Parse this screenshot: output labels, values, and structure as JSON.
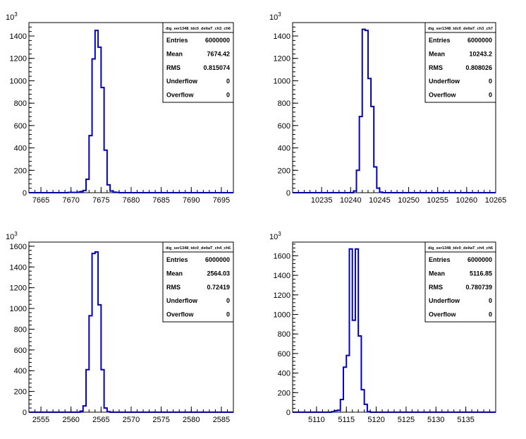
{
  "chart_data": [
    {
      "type": "histogram",
      "stats_title": "dig_ser1348_tdc0_deltaT_ch3_ch6",
      "y_multiplier_base": "10",
      "y_multiplier_exp": "3",
      "xlim": [
        7663,
        7697
      ],
      "ylim": [
        0,
        1520
      ],
      "xticks": [
        7665,
        7670,
        7675,
        7680,
        7685,
        7690,
        7695
      ],
      "xtick_labels": [
        "7665",
        "7670",
        "7675",
        "7680",
        "7685",
        "7690",
        "7695"
      ],
      "yticks": [
        0,
        200,
        400,
        600,
        800,
        1000,
        1200,
        1400
      ],
      "ytick_labels": [
        "0",
        "200",
        "400",
        "600",
        "800",
        "1000",
        "1200",
        "1400"
      ],
      "bin_width": 0.5,
      "bins": [
        [
          7669.5,
          2
        ],
        [
          7670.0,
          2
        ],
        [
          7670.5,
          2
        ],
        [
          7671.0,
          5
        ],
        [
          7671.5,
          10
        ],
        [
          7672.0,
          20
        ],
        [
          7672.5,
          120
        ],
        [
          7673.0,
          510
        ],
        [
          7673.5,
          1195
        ],
        [
          7674.0,
          1450
        ],
        [
          7674.5,
          1300
        ],
        [
          7675.0,
          940
        ],
        [
          7675.5,
          380
        ],
        [
          7676.0,
          70
        ],
        [
          7676.5,
          15
        ],
        [
          7677.0,
          5
        ],
        [
          7677.5,
          2
        ]
      ],
      "stats": [
        {
          "label": "Entries",
          "value": "6000000"
        },
        {
          "label": "Mean",
          "value": "7674.42"
        },
        {
          "label": "RMS",
          "value": "0.815074"
        },
        {
          "label": "Underflow",
          "value": "0"
        },
        {
          "label": "Overflow",
          "value": "0"
        }
      ],
      "line_color": "#0000cc"
    },
    {
      "type": "histogram",
      "stats_title": "dig_ser1348_tdc0_deltaT_ch3_ch7",
      "y_multiplier_base": "10",
      "y_multiplier_exp": "3",
      "xlim": [
        10230,
        10265
      ],
      "ylim": [
        0,
        1520
      ],
      "xticks": [
        10235,
        10240,
        10245,
        10250,
        10255,
        10260,
        10265
      ],
      "xtick_labels": [
        "10235",
        "10240",
        "10245",
        "10250",
        "10255",
        "10260",
        "10265"
      ],
      "yticks": [
        0,
        200,
        400,
        600,
        800,
        1000,
        1200,
        1400
      ],
      "ytick_labels": [
        "0",
        "200",
        "400",
        "600",
        "800",
        "1000",
        "1200",
        "1400"
      ],
      "bin_width": 0.5,
      "bins": [
        [
          10240.5,
          15
        ],
        [
          10241.0,
          200
        ],
        [
          10241.5,
          680
        ],
        [
          10242.0,
          1460
        ],
        [
          10242.5,
          1450
        ],
        [
          10243.0,
          1020
        ],
        [
          10243.5,
          770
        ],
        [
          10244.0,
          230
        ],
        [
          10244.5,
          40
        ],
        [
          10245.0,
          5
        ]
      ],
      "stats": [
        {
          "label": "Entries",
          "value": "6000000"
        },
        {
          "label": "Mean",
          "value": "10243.2"
        },
        {
          "label": "RMS",
          "value": "0.808026"
        },
        {
          "label": "Underflow",
          "value": "0"
        },
        {
          "label": "Overflow",
          "value": "0"
        }
      ],
      "line_color": "#0000cc"
    },
    {
      "type": "histogram",
      "stats_title": "dig_ser1348_tdc0_deltaT_ch4_ch5",
      "y_multiplier_base": "10",
      "y_multiplier_exp": "3",
      "xlim": [
        2553,
        2587
      ],
      "ylim": [
        0,
        1640
      ],
      "xticks": [
        2555,
        2560,
        2565,
        2570,
        2575,
        2580,
        2585
      ],
      "xtick_labels": [
        "2555",
        "2560",
        "2565",
        "2570",
        "2575",
        "2580",
        "2585"
      ],
      "yticks": [
        0,
        200,
        400,
        600,
        800,
        1000,
        1200,
        1400,
        1600
      ],
      "ytick_labels": [
        "0",
        "200",
        "400",
        "600",
        "800",
        "1000",
        "1200",
        "1400",
        "1600"
      ],
      "bin_width": 0.5,
      "bins": [
        [
          2561.5,
          10
        ],
        [
          2562.0,
          60
        ],
        [
          2562.5,
          410
        ],
        [
          2563.0,
          930
        ],
        [
          2563.5,
          1530
        ],
        [
          2564.0,
          1545
        ],
        [
          2564.5,
          1035
        ],
        [
          2565.0,
          410
        ],
        [
          2565.5,
          40
        ],
        [
          2566.0,
          5
        ]
      ],
      "stats": [
        {
          "label": "Entries",
          "value": "6000000"
        },
        {
          "label": "Mean",
          "value": "2564.03"
        },
        {
          "label": "RMS",
          "value": "0.72419"
        },
        {
          "label": "Underflow",
          "value": "0"
        },
        {
          "label": "Overflow",
          "value": "0"
        }
      ],
      "line_color": "#0000cc"
    },
    {
      "type": "histogram",
      "stats_title": "dig_ser1348_tdc0_deltaT_ch4_ch6",
      "y_multiplier_base": "10",
      "y_multiplier_exp": "3",
      "xlim": [
        5106,
        5140
      ],
      "ylim": [
        0,
        1740
      ],
      "xticks": [
        5110,
        5115,
        5120,
        5125,
        5130,
        5135
      ],
      "xtick_labels": [
        "5110",
        "5115",
        "5120",
        "5125",
        "5130",
        "5135"
      ],
      "yticks": [
        0,
        200,
        400,
        600,
        800,
        1000,
        1200,
        1400,
        1600
      ],
      "ytick_labels": [
        "0",
        "200",
        "400",
        "600",
        "800",
        "1000",
        "1200",
        "1400",
        "1600"
      ],
      "bin_width": 0.5,
      "bins": [
        [
          5112.5,
          5
        ],
        [
          5113.0,
          15
        ],
        [
          5113.5,
          20
        ],
        [
          5114.0,
          130
        ],
        [
          5114.5,
          460
        ],
        [
          5115.0,
          580
        ],
        [
          5115.5,
          1670
        ],
        [
          5116.0,
          940
        ],
        [
          5116.5,
          1670
        ],
        [
          5117.0,
          780
        ],
        [
          5117.5,
          230
        ],
        [
          5118.0,
          80
        ],
        [
          5118.5,
          5
        ]
      ],
      "stats": [
        {
          "label": "Entries",
          "value": "6000000"
        },
        {
          "label": "Mean",
          "value": "5116.85"
        },
        {
          "label": "RMS",
          "value": "0.780739"
        },
        {
          "label": "Underflow",
          "value": "0"
        },
        {
          "label": "Overflow",
          "value": "0"
        }
      ],
      "line_color": "#0000cc"
    }
  ]
}
